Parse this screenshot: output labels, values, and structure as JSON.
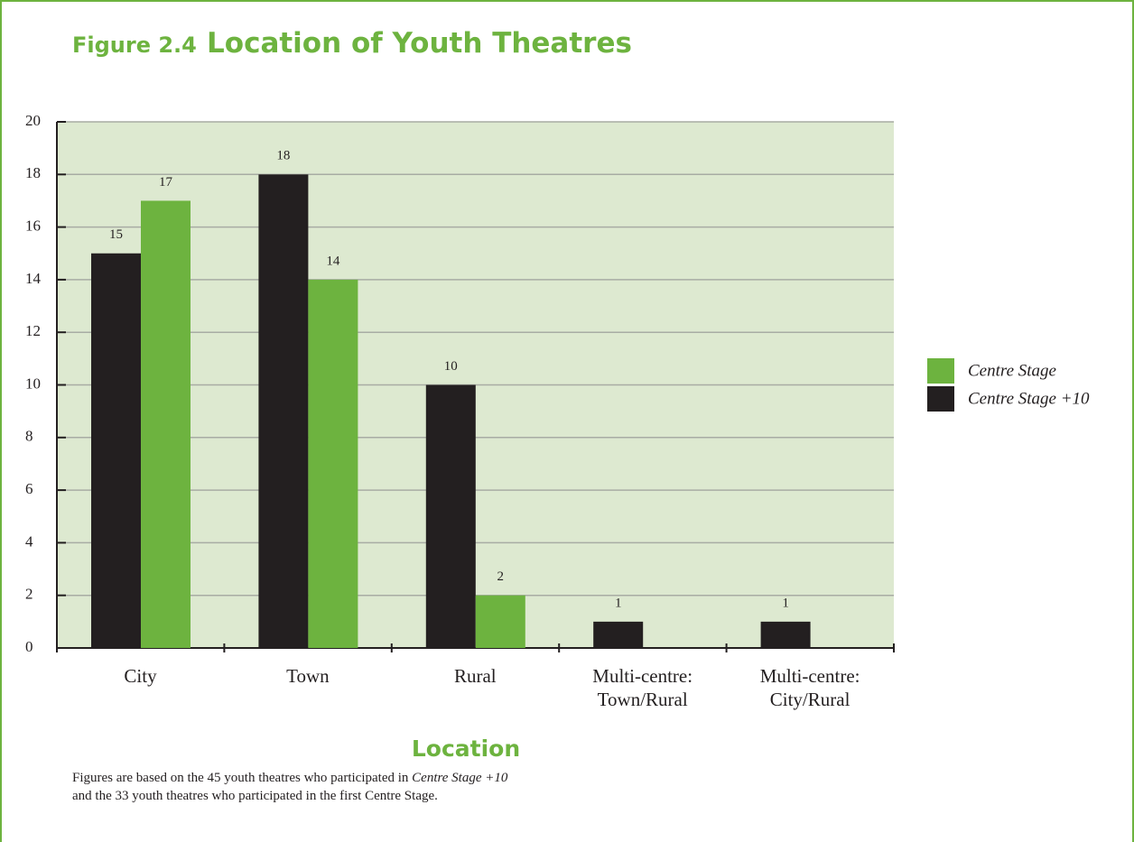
{
  "chart_data": {
    "type": "bar",
    "figure_label": "Figure 2.4",
    "title": "Location of Youth Theatres",
    "x_label": "Location",
    "categories": [
      "City",
      "Town",
      "Rural",
      "Multi-centre:\nTown/Rural",
      "Multi-centre:\nCity/Rural"
    ],
    "series": [
      {
        "name": "Centre Stage +10",
        "color": "#231f20",
        "values": [
          15,
          18,
          10,
          1,
          1
        ]
      },
      {
        "name": "Centre Stage",
        "color": "#6db33f",
        "values": [
          17,
          14,
          2,
          null,
          null
        ]
      }
    ],
    "ylim": [
      0,
      20
    ],
    "yticks": [
      0,
      2,
      4,
      6,
      8,
      10,
      12,
      14,
      16,
      18,
      20
    ],
    "grid": true,
    "legend": "right",
    "note": [
      "Figures are based on the 45 youth theatres who participated in ",
      "Centre Stage +10",
      "and the 33 youth theatres who participated in the first Centre Stage."
    ]
  }
}
